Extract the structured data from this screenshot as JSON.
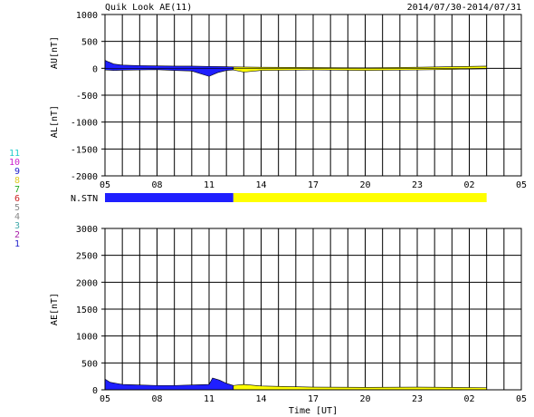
{
  "header": {
    "title": "Quik Look AE(11)",
    "date_range": "2014/07/30-2014/07/31"
  },
  "stn_label": "N.STN",
  "stn_numbers": [
    {
      "label": "11",
      "color": "#22cccc"
    },
    {
      "label": "10",
      "color": "#cc22cc"
    },
    {
      "label": "9",
      "color": "#2222cc"
    },
    {
      "label": "8",
      "color": "#ddcc22"
    },
    {
      "label": "7",
      "color": "#22aa22"
    },
    {
      "label": "6",
      "color": "#cc2222"
    },
    {
      "label": "5",
      "color": "#888888"
    },
    {
      "label": "4",
      "color": "#888888"
    },
    {
      "label": "3",
      "color": "#44aaaa"
    },
    {
      "label": "2",
      "color": "#aa22aa"
    },
    {
      "label": "1",
      "color": "#2222cc"
    }
  ],
  "colors": {
    "blue": "#1f1fff",
    "yellow": "#ffff00",
    "dark_line": "#000000"
  },
  "chart_data": [
    {
      "type": "area",
      "name": "AU/AL",
      "ylabel_top": "AU[nT]",
      "ylabel_bottom": "AL[nT]",
      "ylim": [
        -2000,
        1000
      ],
      "yticks": [
        1000,
        500,
        0,
        -500,
        -1000,
        -1500,
        -2000
      ],
      "xlim": [
        5,
        29
      ],
      "xticks": [
        "05",
        "08",
        "11",
        "14",
        "17",
        "20",
        "23",
        "02",
        "05"
      ],
      "grid": true,
      "segments": [
        {
          "color": "blue",
          "x_range": [
            5,
            12.4
          ]
        },
        {
          "color": "yellow",
          "x_range": [
            12.4,
            27.0
          ]
        }
      ],
      "au": [
        [
          5.0,
          150
        ],
        [
          5.2,
          120
        ],
        [
          5.5,
          80
        ],
        [
          6,
          60
        ],
        [
          7,
          50
        ],
        [
          8,
          45
        ],
        [
          9,
          40
        ],
        [
          10,
          40
        ],
        [
          11,
          35
        ],
        [
          12,
          30
        ],
        [
          12.4,
          25
        ],
        [
          14,
          20
        ],
        [
          17,
          15
        ],
        [
          20,
          10
        ],
        [
          23,
          20
        ],
        [
          25,
          30
        ],
        [
          27,
          40
        ]
      ],
      "al": [
        [
          5.0,
          -30
        ],
        [
          5.5,
          -40
        ],
        [
          6,
          -35
        ],
        [
          7,
          -30
        ],
        [
          8,
          -25
        ],
        [
          9,
          -40
        ],
        [
          10,
          -50
        ],
        [
          11,
          -150
        ],
        [
          11.5,
          -80
        ],
        [
          12,
          -40
        ],
        [
          12.4,
          -30
        ],
        [
          13,
          -70
        ],
        [
          14,
          -40
        ],
        [
          17,
          -30
        ],
        [
          20,
          -40
        ],
        [
          23,
          -30
        ],
        [
          25,
          -20
        ],
        [
          27,
          -10
        ]
      ]
    },
    {
      "type": "area",
      "name": "AE",
      "ylabel": "AE[nT]",
      "xlabel": "Time [UT]",
      "ylim": [
        0,
        3000
      ],
      "yticks": [
        3000,
        2500,
        2000,
        1500,
        1000,
        500,
        0
      ],
      "xlim": [
        5,
        29
      ],
      "xticks": [
        "05",
        "08",
        "11",
        "14",
        "17",
        "20",
        "23",
        "02",
        "05"
      ],
      "grid": true,
      "segments": [
        {
          "color": "blue",
          "x_range": [
            5,
            12.4
          ]
        },
        {
          "color": "yellow",
          "x_range": [
            12.4,
            27.0
          ]
        }
      ],
      "ae": [
        [
          5.0,
          200
        ],
        [
          5.3,
          140
        ],
        [
          6,
          100
        ],
        [
          7,
          90
        ],
        [
          8,
          80
        ],
        [
          9,
          80
        ],
        [
          10,
          90
        ],
        [
          11,
          100
        ],
        [
          11.2,
          220
        ],
        [
          11.6,
          180
        ],
        [
          12,
          120
        ],
        [
          12.4,
          80
        ],
        [
          13,
          100
        ],
        [
          14,
          70
        ],
        [
          17,
          50
        ],
        [
          20,
          45
        ],
        [
          23,
          50
        ],
        [
          25,
          45
        ],
        [
          27,
          40
        ]
      ]
    }
  ]
}
